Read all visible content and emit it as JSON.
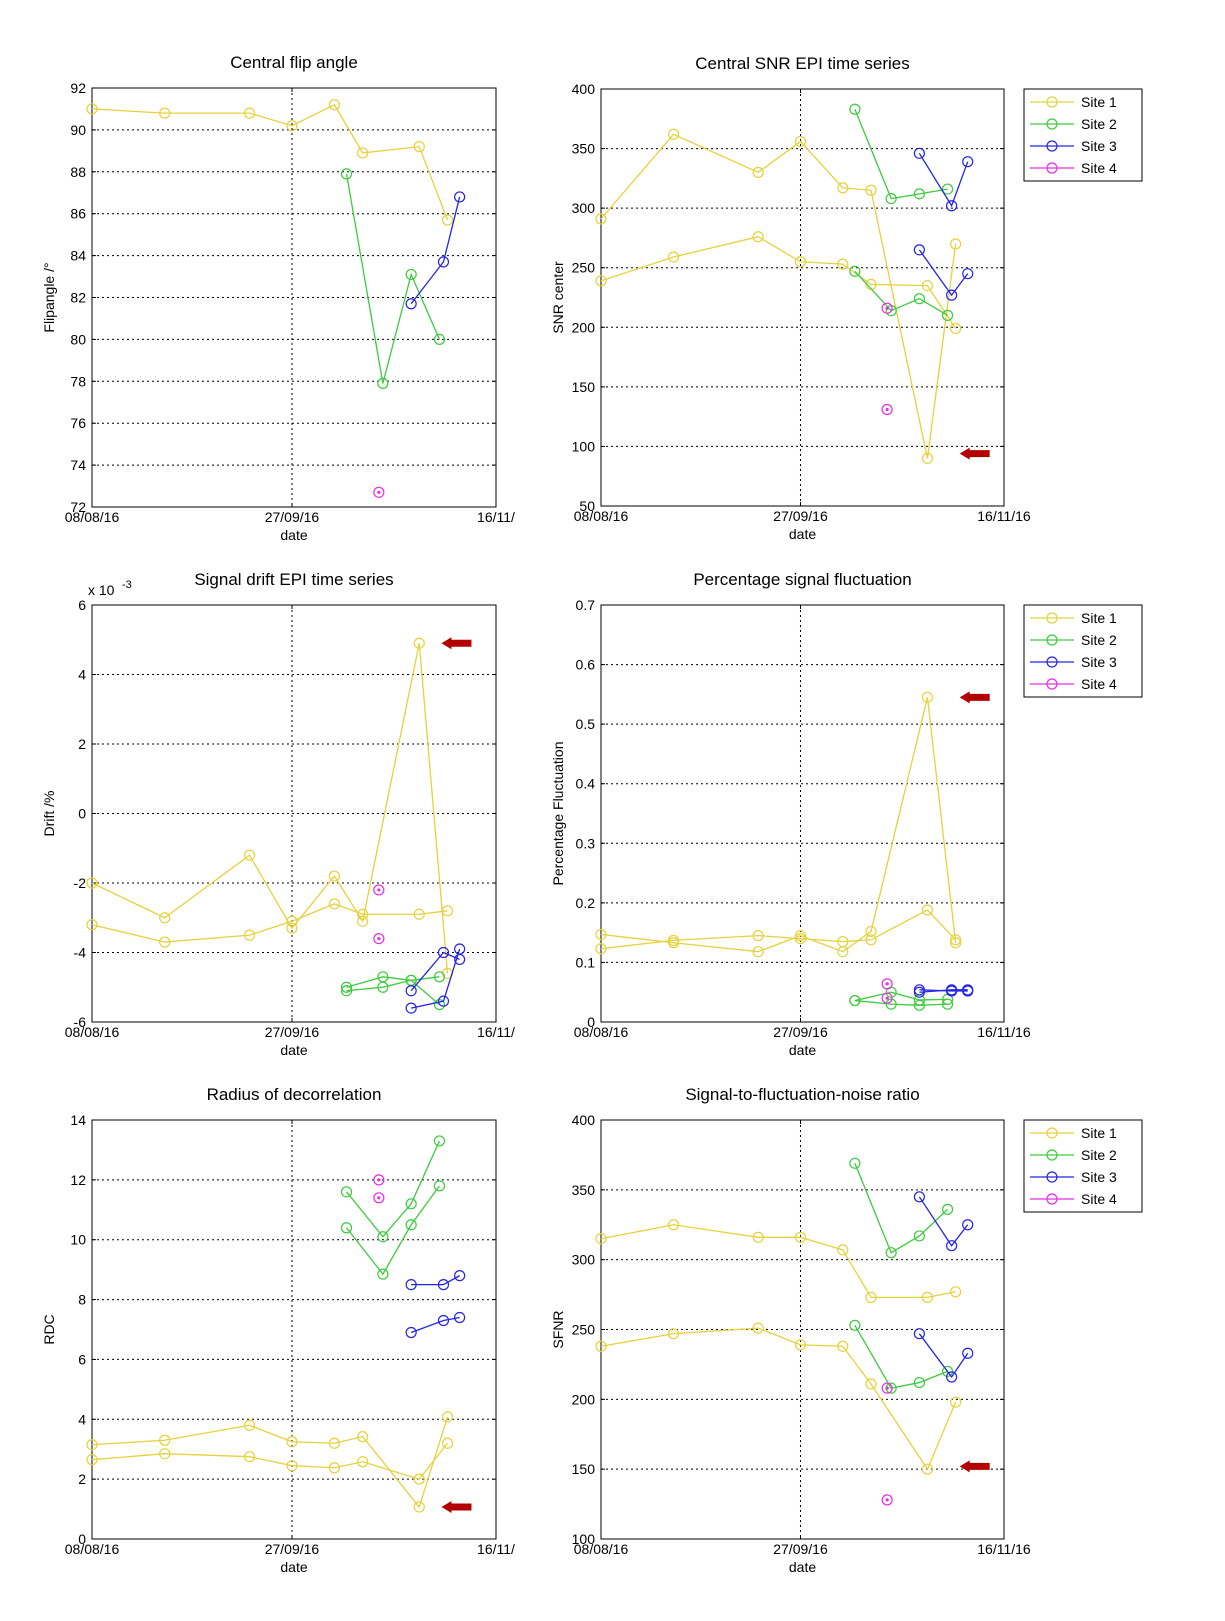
{
  "series_styles": {
    "Site 1": {
      "color": "#e6d23c"
    },
    "Site 2": {
      "color": "#3ccc3c"
    },
    "Site 3": {
      "color": "#2424e6"
    },
    "Site 4": {
      "color": "#e62ee6"
    }
  },
  "arrow_color": "#b30000",
  "chart_data": [
    {
      "id": "flip",
      "type": "line",
      "title": "Central flip angle",
      "xlabel": "date",
      "ylabel": "Flipangle /°",
      "xlim": [
        0,
        100
      ],
      "ylim": [
        72,
        92
      ],
      "xticks": [
        0,
        49.5,
        100
      ],
      "xticklabels": [
        "08/08/16",
        "27/09/16",
        "16/11/"
      ],
      "yticks": [
        72,
        74,
        76,
        78,
        80,
        82,
        84,
        86,
        88,
        90,
        92
      ],
      "yticklabels": [
        "72",
        "74",
        "76",
        "78",
        "80",
        "82",
        "84",
        "86",
        "88",
        "90",
        "92"
      ],
      "legend": null,
      "arrow": null,
      "series": [
        {
          "name": "Site 1",
          "x": [
            0,
            18,
            39,
            49.5,
            60,
            67,
            81,
            88
          ],
          "y": [
            91,
            90.8,
            90.8,
            90.2,
            91.2,
            88.9,
            89.2,
            85.7
          ]
        },
        {
          "name": "Site 2",
          "x": [
            63,
            72,
            79,
            86
          ],
          "y": [
            87.9,
            77.9,
            83.1,
            80.0
          ]
        },
        {
          "name": "Site 3",
          "x": [
            79,
            87,
            91
          ],
          "y": [
            81.7,
            83.7,
            86.8
          ]
        },
        {
          "name": "Site 4",
          "x": [
            71
          ],
          "y": [
            72.7
          ]
        }
      ]
    },
    {
      "id": "snr",
      "type": "line",
      "title": "Central SNR EPI time series",
      "xlabel": "date",
      "ylabel": "SNR center",
      "xlim": [
        0,
        100
      ],
      "ylim": [
        50,
        400
      ],
      "xticks": [
        0,
        49.5,
        100
      ],
      "xticklabels": [
        "08/08/16",
        "27/09/16",
        "16/11/16"
      ],
      "yticks": [
        50,
        100,
        150,
        200,
        250,
        300,
        350,
        400
      ],
      "yticklabels": [
        "50",
        "100",
        "150",
        "200",
        "250",
        "300",
        "350",
        "400"
      ],
      "legend": [
        "Site 1",
        "Site 2",
        "Site 3",
        "Site 4"
      ],
      "arrow": {
        "x": 89,
        "y": 94
      },
      "series": [
        {
          "name": "Site 1",
          "x": [
            0,
            18,
            39,
            49.5,
            60,
            67,
            81,
            88
          ],
          "y": [
            291,
            362,
            330,
            356,
            317,
            315,
            90,
            270
          ]
        },
        {
          "name": "Site 1",
          "x": [
            0,
            18,
            39,
            49.5,
            60,
            67,
            81,
            88
          ],
          "y": [
            239,
            259,
            276,
            255,
            253,
            236,
            235,
            199
          ]
        },
        {
          "name": "Site 2",
          "x": [
            63,
            72,
            79,
            86
          ],
          "y": [
            383,
            308,
            312,
            316
          ]
        },
        {
          "name": "Site 2",
          "x": [
            63,
            72,
            79,
            86
          ],
          "y": [
            247,
            214,
            224,
            210
          ]
        },
        {
          "name": "Site 3",
          "x": [
            79,
            87,
            91
          ],
          "y": [
            346,
            302,
            339
          ]
        },
        {
          "name": "Site 3",
          "x": [
            79,
            87,
            91
          ],
          "y": [
            265,
            227,
            245
          ]
        },
        {
          "name": "Site 4",
          "x": [
            71
          ],
          "y": [
            216
          ]
        },
        {
          "name": "Site 4",
          "x": [
            71
          ],
          "y": [
            131
          ]
        }
      ]
    },
    {
      "id": "drift",
      "type": "line",
      "title": "Signal drift EPI time series",
      "exponent_label": "x 10",
      "exponent_power": "-3",
      "xlabel": "date",
      "ylabel": "Drift /%",
      "xlim": [
        0,
        100
      ],
      "ylim": [
        -6,
        6
      ],
      "xticks": [
        0,
        49.5,
        100
      ],
      "xticklabels": [
        "08/08/16",
        "27/09/16",
        "16/11/"
      ],
      "yticks": [
        -6,
        -4,
        -2,
        0,
        2,
        4,
        6
      ],
      "yticklabels": [
        "-6",
        "-4",
        "-2",
        "0",
        "2",
        "4",
        "6"
      ],
      "legend": null,
      "arrow": {
        "x": 86.5,
        "y": 4.9
      },
      "series": [
        {
          "name": "Site 1",
          "x": [
            0,
            18,
            39,
            49.5,
            60,
            67,
            81,
            88
          ],
          "y": [
            -2.0,
            -3.0,
            -1.2,
            -3.3,
            -1.8,
            -3.1,
            4.9,
            -4.6
          ]
        },
        {
          "name": "Site 1",
          "x": [
            0,
            18,
            39,
            49.5,
            60,
            67,
            81,
            88
          ],
          "y": [
            -3.2,
            -3.7,
            -3.5,
            -3.1,
            -2.6,
            -2.9,
            -2.9,
            -2.8
          ]
        },
        {
          "name": "Site 2",
          "x": [
            63,
            72,
            79,
            86
          ],
          "y": [
            -5.0,
            -4.7,
            -4.8,
            -5.5
          ]
        },
        {
          "name": "Site 2",
          "x": [
            63,
            72,
            79,
            86
          ],
          "y": [
            -5.1,
            -5.0,
            -4.8,
            -4.7
          ]
        },
        {
          "name": "Site 3",
          "x": [
            79,
            87,
            91
          ],
          "y": [
            -5.6,
            -5.4,
            -3.9
          ]
        },
        {
          "name": "Site 3",
          "x": [
            79,
            87,
            91
          ],
          "y": [
            -5.1,
            -4.0,
            -4.2
          ]
        },
        {
          "name": "Site 4",
          "x": [
            71
          ],
          "y": [
            -2.2
          ]
        },
        {
          "name": "Site 4",
          "x": [
            71
          ],
          "y": [
            -3.6
          ]
        }
      ]
    },
    {
      "id": "fluct",
      "type": "line",
      "title": "Percentage signal fluctuation",
      "xlabel": "date",
      "ylabel": "Percentage Fluctuation",
      "xlim": [
        0,
        100
      ],
      "ylim": [
        0,
        0.7
      ],
      "xticks": [
        0,
        49.5,
        100
      ],
      "xticklabels": [
        "08/08/16",
        "27/09/16",
        "16/11/16"
      ],
      "yticks": [
        0,
        0.1,
        0.2,
        0.3,
        0.4,
        0.5,
        0.6,
        0.7
      ],
      "yticklabels": [
        "0",
        "0.1",
        "0.2",
        "0.3",
        "0.4",
        "0.5",
        "0.6",
        "0.7"
      ],
      "legend": [
        "Site 1",
        "Site 2",
        "Site 3",
        "Site 4"
      ],
      "arrow": {
        "x": 89,
        "y": 0.545
      },
      "series": [
        {
          "name": "Site 1",
          "x": [
            0,
            18,
            39,
            49.5,
            60,
            67,
            81,
            88
          ],
          "y": [
            0.147,
            0.133,
            0.118,
            0.145,
            0.118,
            0.152,
            0.545,
            0.133
          ]
        },
        {
          "name": "Site 1",
          "x": [
            0,
            18,
            39,
            49.5,
            60,
            67,
            81,
            88
          ],
          "y": [
            0.123,
            0.137,
            0.145,
            0.14,
            0.135,
            0.138,
            0.188,
            0.138
          ]
        },
        {
          "name": "Site 2",
          "x": [
            63,
            72,
            79,
            86
          ],
          "y": [
            0.036,
            0.05,
            0.037,
            0.038
          ]
        },
        {
          "name": "Site 2",
          "x": [
            63,
            72,
            79,
            86
          ],
          "y": [
            0.036,
            0.03,
            0.028,
            0.03
          ]
        },
        {
          "name": "Site 3",
          "x": [
            79,
            87,
            91
          ],
          "y": [
            0.05,
            0.054,
            0.054
          ]
        },
        {
          "name": "Site 3",
          "x": [
            79,
            87,
            91
          ],
          "y": [
            0.054,
            0.052,
            0.052
          ]
        },
        {
          "name": "Site 4",
          "x": [
            71
          ],
          "y": [
            0.064
          ]
        },
        {
          "name": "Site 4",
          "x": [
            71
          ],
          "y": [
            0.04
          ]
        }
      ]
    },
    {
      "id": "rdc",
      "type": "line",
      "title": "Radius of decorrelation",
      "xlabel": "date",
      "ylabel": "RDC",
      "xlim": [
        0,
        100
      ],
      "ylim": [
        0,
        14
      ],
      "xticks": [
        0,
        49.5,
        100
      ],
      "xticklabels": [
        "08/08/16",
        "27/09/16",
        "16/11/"
      ],
      "yticks": [
        0,
        2,
        4,
        6,
        8,
        10,
        12,
        14
      ],
      "yticklabels": [
        "0",
        "2",
        "4",
        "6",
        "8",
        "10",
        "12",
        "14"
      ],
      "legend": null,
      "arrow": {
        "x": 86.5,
        "y": 1.07
      },
      "series": [
        {
          "name": "Site 1",
          "x": [
            0,
            18,
            39,
            49.5,
            60,
            67,
            81,
            88
          ],
          "y": [
            3.15,
            3.3,
            3.8,
            3.25,
            3.2,
            3.42,
            1.07,
            4.08
          ]
        },
        {
          "name": "Site 1",
          "x": [
            0,
            18,
            39,
            49.5,
            60,
            67,
            81,
            88
          ],
          "y": [
            2.65,
            2.85,
            2.75,
            2.45,
            2.38,
            2.58,
            2.0,
            3.2
          ]
        },
        {
          "name": "Site 2",
          "x": [
            63,
            72,
            79,
            86
          ],
          "y": [
            11.6,
            10.1,
            11.2,
            13.3
          ]
        },
        {
          "name": "Site 2",
          "x": [
            63,
            72,
            79,
            86
          ],
          "y": [
            10.4,
            8.85,
            10.5,
            11.8
          ]
        },
        {
          "name": "Site 3",
          "x": [
            79,
            87,
            91
          ],
          "y": [
            8.5,
            8.5,
            8.8
          ]
        },
        {
          "name": "Site 3",
          "x": [
            79,
            87,
            91
          ],
          "y": [
            6.9,
            7.3,
            7.4
          ]
        },
        {
          "name": "Site 4",
          "x": [
            71
          ],
          "y": [
            12.0
          ]
        },
        {
          "name": "Site 4",
          "x": [
            71
          ],
          "y": [
            11.4
          ]
        }
      ]
    },
    {
      "id": "sfnr",
      "type": "line",
      "title": "Signal-to-fluctuation-noise ratio",
      "xlabel": "date",
      "ylabel": "SFNR",
      "xlim": [
        0,
        100
      ],
      "ylim": [
        100,
        400
      ],
      "xticks": [
        0,
        49.5,
        100
      ],
      "xticklabels": [
        "08/08/16",
        "27/09/16",
        "16/11/16"
      ],
      "yticks": [
        100,
        150,
        200,
        250,
        300,
        350,
        400
      ],
      "yticklabels": [
        "100",
        "150",
        "200",
        "250",
        "300",
        "350",
        "400"
      ],
      "legend": [
        "Site 1",
        "Site 2",
        "Site 3",
        "Site 4"
      ],
      "arrow": {
        "x": 89,
        "y": 152
      },
      "series": [
        {
          "name": "Site 1",
          "x": [
            0,
            18,
            39,
            49.5,
            60,
            67,
            81,
            88
          ],
          "y": [
            315,
            325,
            316,
            316,
            307,
            273,
            273,
            277
          ]
        },
        {
          "name": "Site 1",
          "x": [
            0,
            18,
            39,
            49.5,
            60,
            67,
            81,
            88
          ],
          "y": [
            238,
            247,
            251,
            239,
            238,
            211,
            150,
            198
          ]
        },
        {
          "name": "Site 2",
          "x": [
            63,
            72,
            79,
            86
          ],
          "y": [
            369,
            305,
            317,
            336
          ]
        },
        {
          "name": "Site 2",
          "x": [
            63,
            72,
            79,
            86
          ],
          "y": [
            253,
            208,
            212,
            220
          ]
        },
        {
          "name": "Site 3",
          "x": [
            79,
            87,
            91
          ],
          "y": [
            345,
            310,
            325
          ]
        },
        {
          "name": "Site 3",
          "x": [
            79,
            87,
            91
          ],
          "y": [
            247,
            216,
            233
          ]
        },
        {
          "name": "Site 4",
          "x": [
            71
          ],
          "y": [
            208
          ]
        },
        {
          "name": "Site 4",
          "x": [
            71
          ],
          "y": [
            128
          ]
        }
      ]
    }
  ]
}
